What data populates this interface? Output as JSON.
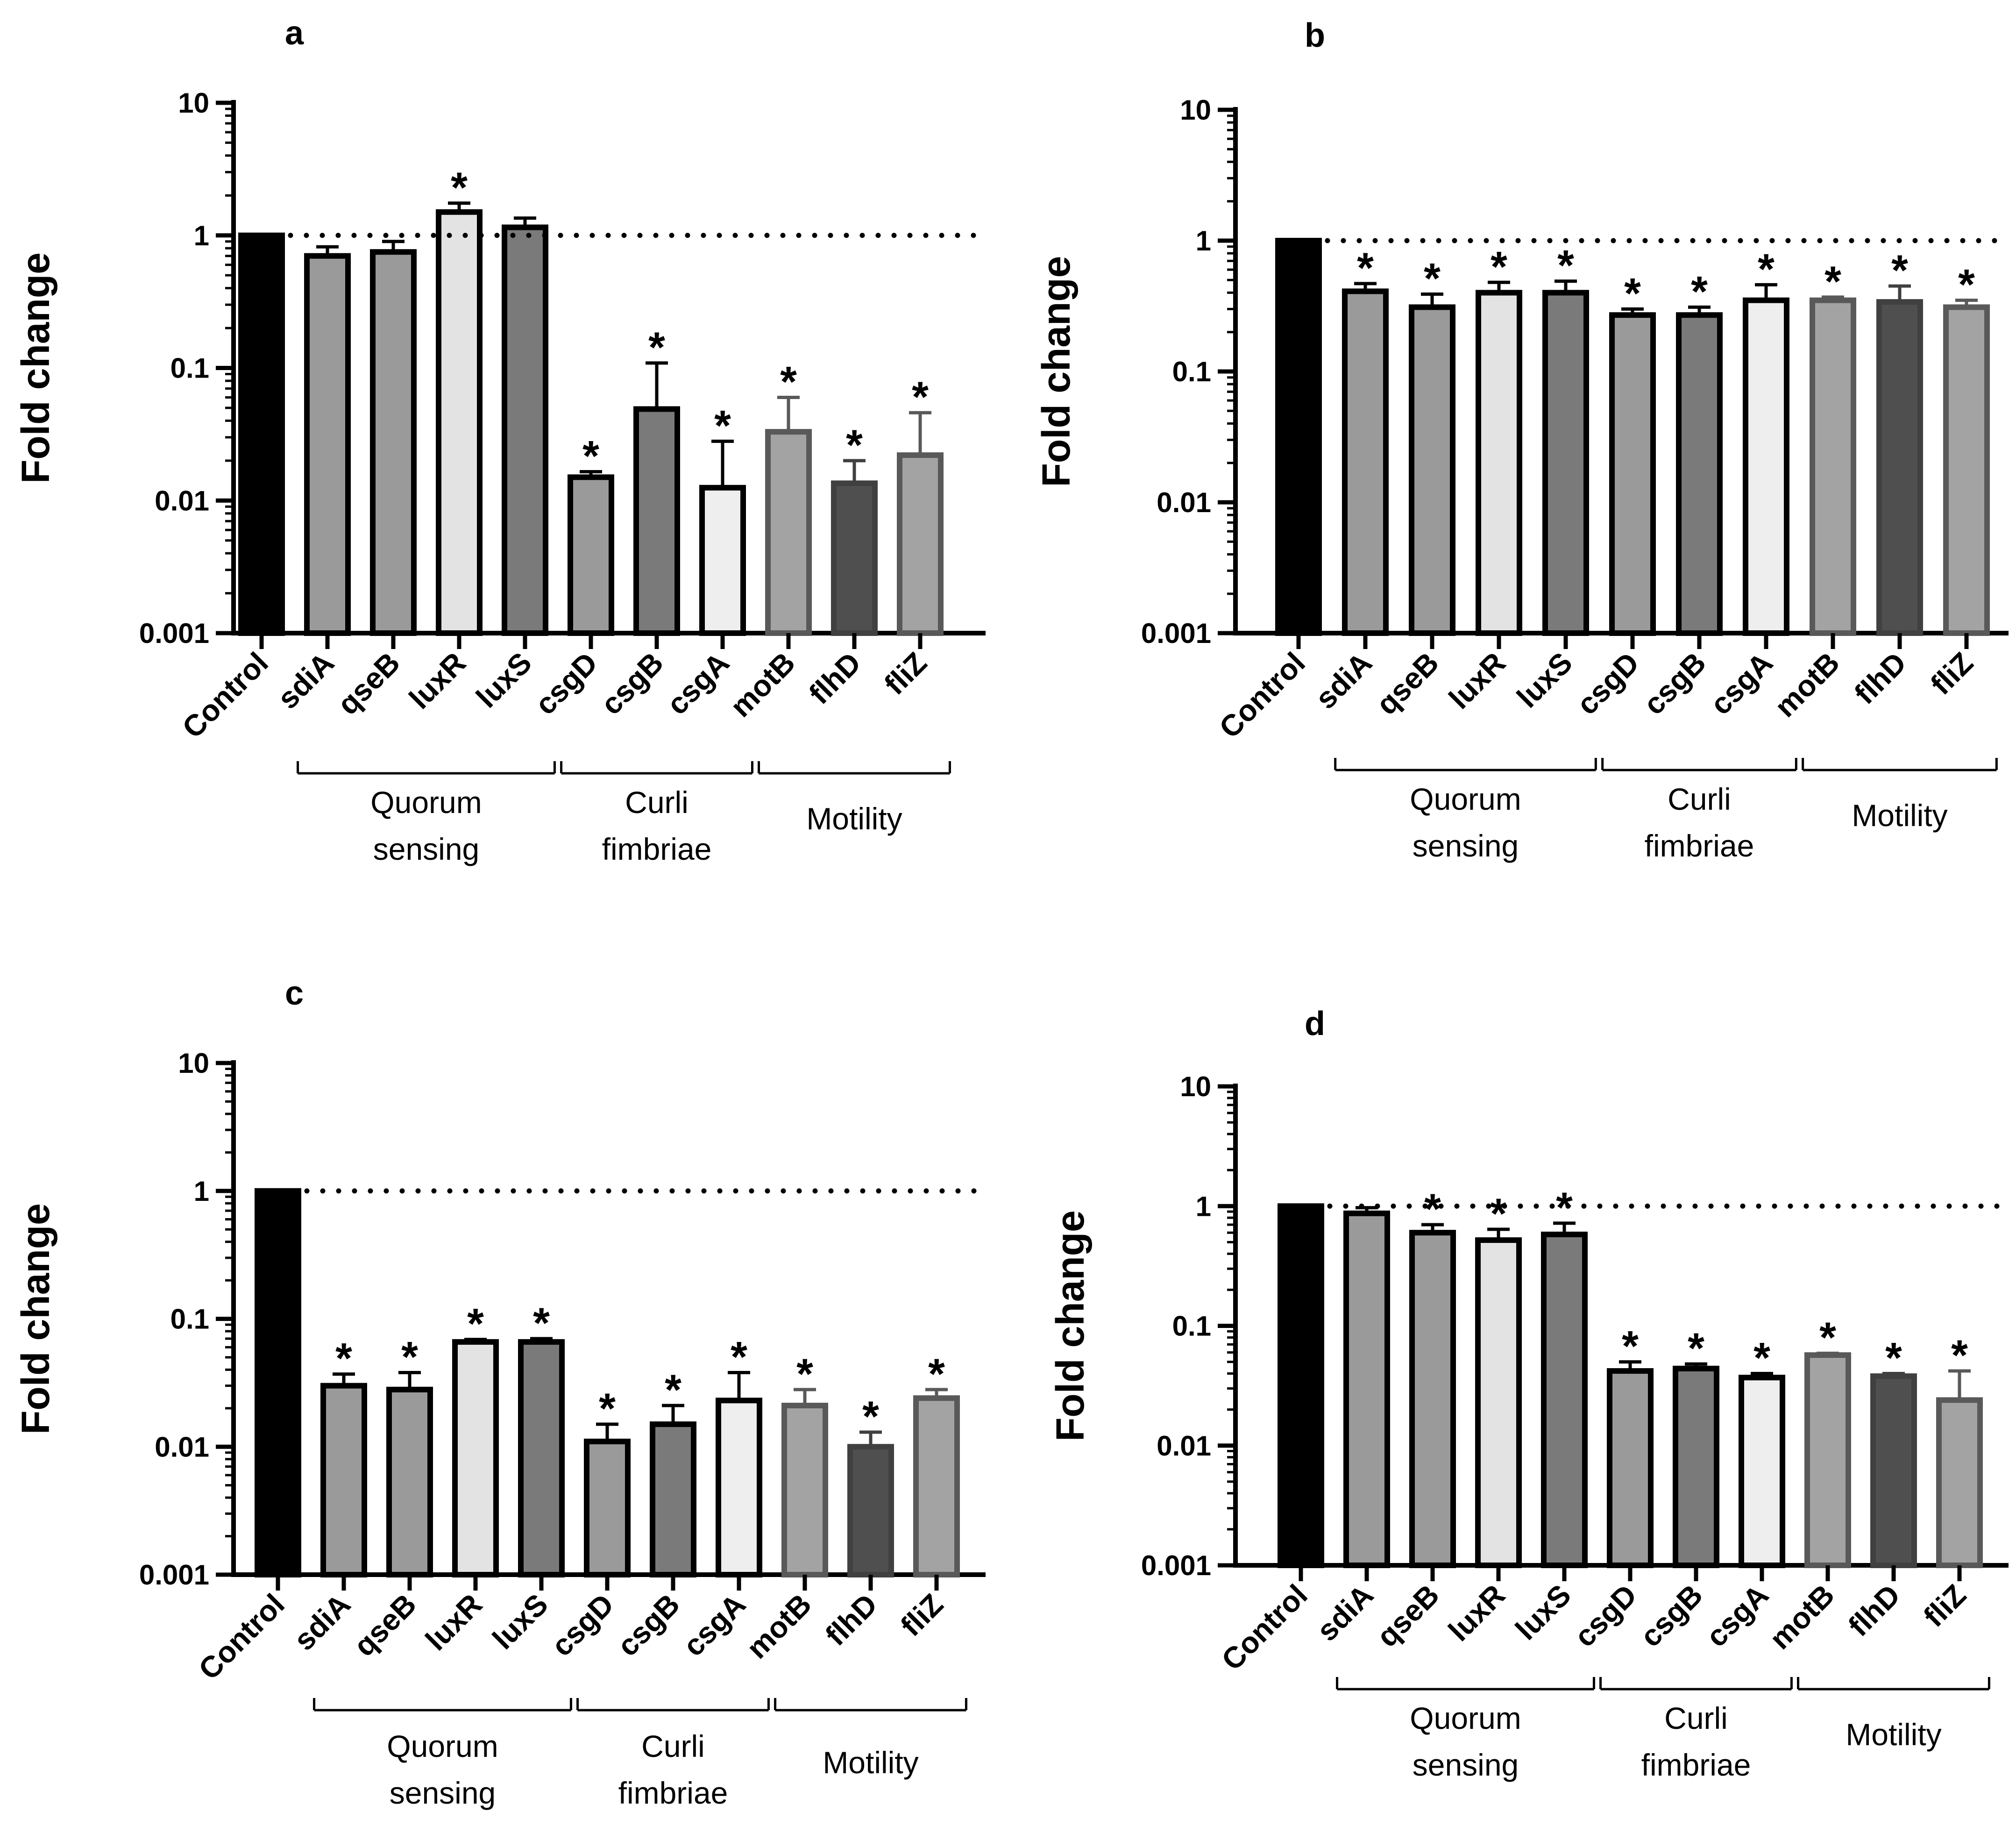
{
  "chart_data": [
    {
      "type": "bar",
      "panel_label": "a",
      "ylabel": "Fold change",
      "yscale": "log",
      "ylim": [
        0.001,
        10
      ],
      "yticks": [
        "0.001",
        "0.01",
        "0.1",
        "1",
        "10"
      ],
      "reference_line": 1,
      "categories": [
        "Control",
        "sdiA",
        "qseB",
        "luxR",
        "luxS",
        "csgD",
        "csgB",
        "csgA",
        "motB",
        "flhD",
        "fliZ"
      ],
      "values": [
        1,
        0.7,
        0.75,
        1.5,
        1.15,
        0.015,
        0.049,
        0.0125,
        0.033,
        0.0135,
        0.022
      ],
      "errors": [
        0,
        0.12,
        0.15,
        0.25,
        0.2,
        0.0015,
        0.06,
        0.0155,
        0.027,
        0.0065,
        0.024
      ],
      "significance": [
        "",
        "",
        "",
        "*",
        "",
        "*",
        "*",
        "*",
        "*",
        "*",
        "*"
      ],
      "groups": [
        {
          "label_lines": [
            "Quorum",
            "sensing"
          ],
          "categories": [
            "sdiA",
            "qseB",
            "luxR",
            "luxS"
          ]
        },
        {
          "label_lines": [
            "Curli",
            "fimbriae"
          ],
          "categories": [
            "csgD",
            "csgB",
            "csgA"
          ]
        },
        {
          "label_lines": [
            "Motility"
          ],
          "categories": [
            "motB",
            "flhD",
            "fliZ"
          ]
        }
      ]
    },
    {
      "type": "bar",
      "panel_label": "b",
      "ylabel": "Fold change",
      "yscale": "log",
      "ylim": [
        0.001,
        10
      ],
      "yticks": [
        "0.001",
        "0.01",
        "0.1",
        "1",
        "10"
      ],
      "reference_line": 1,
      "categories": [
        "Control",
        "sdiA",
        "qseB",
        "luxR",
        "luxS",
        "csgD",
        "csgB",
        "csgA",
        "motB",
        "flhD",
        "fliZ"
      ],
      "values": [
        1,
        0.41,
        0.31,
        0.4,
        0.4,
        0.27,
        0.27,
        0.35,
        0.35,
        0.34,
        0.31
      ],
      "errors": [
        0,
        0.06,
        0.08,
        0.08,
        0.09,
        0.03,
        0.04,
        0.11,
        0.02,
        0.11,
        0.04
      ],
      "significance": [
        "",
        "*",
        "*",
        "*",
        "*",
        "*",
        "*",
        "*",
        "*",
        "*",
        "*"
      ],
      "groups": [
        {
          "label_lines": [
            "Quorum",
            "sensing"
          ],
          "categories": [
            "sdiA",
            "qseB",
            "luxR",
            "luxS"
          ]
        },
        {
          "label_lines": [
            "Curli",
            "fimbriae"
          ],
          "categories": [
            "csgD",
            "csgB",
            "csgA"
          ]
        },
        {
          "label_lines": [
            "Motility"
          ],
          "categories": [
            "motB",
            "flhD",
            "fliZ"
          ]
        }
      ]
    },
    {
      "type": "bar",
      "panel_label": "c",
      "ylabel": "Fold change",
      "yscale": "log",
      "ylim": [
        0.001,
        10
      ],
      "yticks": [
        "0.001",
        "0.01",
        "0.1",
        "1",
        "10"
      ],
      "reference_line": 1,
      "categories": [
        "Control",
        "sdiA",
        "qseB",
        "luxR",
        "luxS",
        "csgD",
        "csgB",
        "csgA",
        "motB",
        "flhD",
        "fliZ"
      ],
      "values": [
        1,
        0.03,
        0.028,
        0.066,
        0.066,
        0.011,
        0.015,
        0.023,
        0.021,
        0.01,
        0.024
      ],
      "errors": [
        0,
        0.007,
        0.01,
        0.003,
        0.004,
        0.004,
        0.006,
        0.015,
        0.007,
        0.003,
        0.004
      ],
      "significance": [
        "",
        "*",
        "*",
        "*",
        "*",
        "*",
        "*",
        "*",
        "*",
        "*",
        "*"
      ],
      "groups": [
        {
          "label_lines": [
            "Quorum",
            "sensing"
          ],
          "categories": [
            "sdiA",
            "qseB",
            "luxR",
            "luxS"
          ]
        },
        {
          "label_lines": [
            "Curli",
            "fimbriae"
          ],
          "categories": [
            "csgD",
            "csgB",
            "csgA"
          ]
        },
        {
          "label_lines": [
            "Motility"
          ],
          "categories": [
            "motB",
            "flhD",
            "fliZ"
          ]
        }
      ]
    },
    {
      "type": "bar",
      "panel_label": "d",
      "ylabel": "Fold change",
      "yscale": "log",
      "ylim": [
        0.001,
        10
      ],
      "yticks": [
        "0.001",
        "0.01",
        "0.1",
        "1",
        "10"
      ],
      "reference_line": 1,
      "categories": [
        "Control",
        "sdiA",
        "qseB",
        "luxR",
        "luxS",
        "csgD",
        "csgB",
        "csgA",
        "motB",
        "flhD",
        "fliZ"
      ],
      "values": [
        1,
        0.87,
        0.6,
        0.52,
        0.58,
        0.042,
        0.044,
        0.037,
        0.057,
        0.038,
        0.024
      ],
      "errors": [
        0,
        0.1,
        0.1,
        0.12,
        0.14,
        0.008,
        0.004,
        0.003,
        0.002,
        0.002,
        0.018
      ],
      "significance": [
        "",
        "",
        "*",
        "*",
        "*",
        "*",
        "*",
        "*",
        "*",
        "*",
        "*"
      ],
      "groups": [
        {
          "label_lines": [
            "Quorum",
            "sensing"
          ],
          "categories": [
            "sdiA",
            "qseB",
            "luxR",
            "luxS"
          ]
        },
        {
          "label_lines": [
            "Curli",
            "fimbriae"
          ],
          "categories": [
            "csgD",
            "csgB",
            "csgA"
          ]
        },
        {
          "label_lines": [
            "Motility"
          ],
          "categories": [
            "motB",
            "flhD",
            "fliZ"
          ]
        }
      ]
    }
  ],
  "bar_colors": [
    "#000000",
    "#9a9a9a",
    "#9a9a9a",
    "#e3e3e3",
    "#7a7a7a",
    "#9a9a9a",
    "#7a7a7a",
    "#eeeeee",
    "#a3a3a3",
    "#4f4f4f",
    "#a3a3a3"
  ],
  "bar_border_colors": [
    "#000000",
    "#000000",
    "#000000",
    "#000000",
    "#000000",
    "#000000",
    "#000000",
    "#000000",
    "#595959",
    "#404040",
    "#595959"
  ]
}
